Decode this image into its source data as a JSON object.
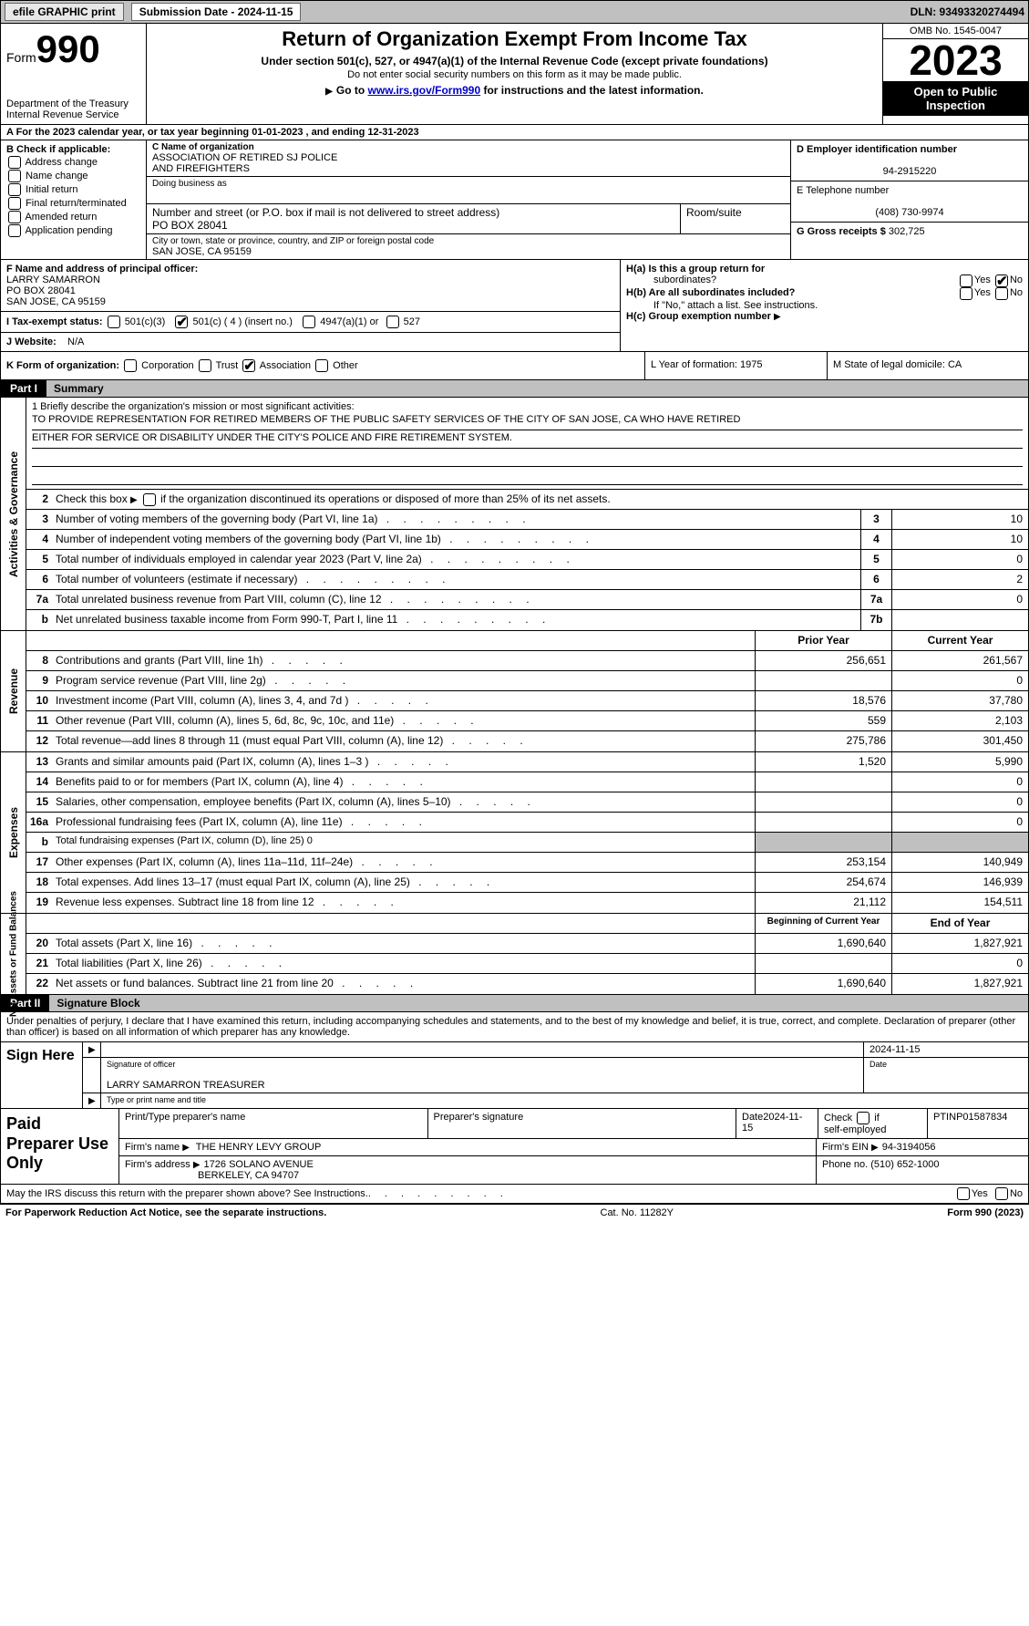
{
  "topbar": {
    "efile": "efile GRAPHIC print",
    "submission_label": "Submission Date - 2024-11-15",
    "dln": "DLN: 93493320274494"
  },
  "header": {
    "form_word": "Form",
    "form_num": "990",
    "dept1": "Department of the Treasury",
    "dept2": "Internal Revenue Service",
    "title": "Return of Organization Exempt From Income Tax",
    "sub1": "Under section 501(c), 527, or 4947(a)(1) of the Internal Revenue Code (except private foundations)",
    "sub2": "Do not enter social security numbers on this form as it may be made public.",
    "sub3_pre": "Go to ",
    "sub3_link": "www.irs.gov/Form990",
    "sub3_post": " for instructions and the latest information.",
    "omb": "OMB No. 1545-0047",
    "year": "2023",
    "open": "Open to Public Inspection"
  },
  "row_a": "A For the 2023 calendar year, or tax year beginning 01-01-2023   , and ending 12-31-2023",
  "section_b": {
    "label": "B Check if applicable:",
    "items": [
      "Address change",
      "Name change",
      "Initial return",
      "Final return/terminated",
      "Amended return",
      "Application pending"
    ]
  },
  "section_c": {
    "name_lbl": "C Name of organization",
    "name1": "ASSOCIATION OF RETIRED SJ POLICE",
    "name2": "AND FIREFIGHTERS",
    "dba_lbl": "Doing business as",
    "street_lbl": "Number and street (or P.O. box if mail is not delivered to street address)",
    "street": "PO BOX 28041",
    "room_lbl": "Room/suite",
    "city_lbl": "City or town, state or province, country, and ZIP or foreign postal code",
    "city": "SAN JOSE, CA  95159"
  },
  "section_d": {
    "ein_lbl": "D Employer identification number",
    "ein": "94-2915220",
    "phone_lbl": "E Telephone number",
    "phone": "(408) 730-9974",
    "gross_lbl": "G Gross receipts $",
    "gross": "302,725"
  },
  "section_f": {
    "lbl": "F  Name and address of principal officer:",
    "l1": "LARRY SAMARRON",
    "l2": "PO BOX 28041",
    "l3": "SAN JOSE, CA  95159"
  },
  "section_i": {
    "lbl": "I   Tax-exempt status:",
    "o1": "501(c)(3)",
    "o2": "501(c) ( 4 ) (insert no.)",
    "o3": "4947(a)(1) or",
    "o4": "527"
  },
  "section_j": {
    "lbl": "J   Website:",
    "val": "N/A"
  },
  "section_h": {
    "ha": "H(a)  Is this a group return for",
    "ha2": "subordinates?",
    "hb": "H(b)  Are all subordinates included?",
    "hb2": "If \"No,\" attach a list. See instructions.",
    "hc": "H(c)  Group exemption number",
    "yes": "Yes",
    "no": "No"
  },
  "section_k": {
    "lbl": "K Form of organization:",
    "opts": [
      "Corporation",
      "Trust",
      "Association",
      "Other"
    ]
  },
  "section_l": {
    "text": "L Year of formation: 1975"
  },
  "section_m": {
    "text": "M State of legal domicile: CA"
  },
  "part1": {
    "num": "Part I",
    "title": "Summary"
  },
  "mission": {
    "lbl": "1   Briefly describe the organization's mission or most significant activities:",
    "l1": "TO PROVIDE REPRESENTATION FOR RETIRED MEMBERS OF THE PUBLIC SAFETY SERVICES OF THE CITY OF SAN JOSE, CA WHO HAVE RETIRED",
    "l2": "EITHER FOR SERVICE OR DISABILITY UNDER THE CITY'S POLICE AND FIRE RETIREMENT SYSTEM."
  },
  "line2": "Check this box        if the organization discontinued its operations or disposed of more than 25% of its net assets.",
  "side_labels": {
    "ag": "Activities & Governance",
    "rev": "Revenue",
    "exp": "Expenses",
    "net": "Net Assets or\nFund Balances"
  },
  "col_hdrs": {
    "prior": "Prior Year",
    "current": "Current Year",
    "boy": "Beginning of Current Year",
    "eoy": "End of Year"
  },
  "lines_ag": [
    {
      "n": "3",
      "t": "Number of voting members of the governing body (Part VI, line 1a)",
      "box": "3",
      "v": "10"
    },
    {
      "n": "4",
      "t": "Number of independent voting members of the governing body (Part VI, line 1b)",
      "box": "4",
      "v": "10"
    },
    {
      "n": "5",
      "t": "Total number of individuals employed in calendar year 2023 (Part V, line 2a)",
      "box": "5",
      "v": "0"
    },
    {
      "n": "6",
      "t": "Total number of volunteers (estimate if necessary)",
      "box": "6",
      "v": "2"
    },
    {
      "n": "7a",
      "t": "Total unrelated business revenue from Part VIII, column (C), line 12",
      "box": "7a",
      "v": "0"
    },
    {
      "n": "b",
      "t": "Net unrelated business taxable income from Form 990-T, Part I, line 11",
      "box": "7b",
      "v": ""
    }
  ],
  "lines_rev": [
    {
      "n": "8",
      "t": "Contributions and grants (Part VIII, line 1h)",
      "p": "256,651",
      "c": "261,567"
    },
    {
      "n": "9",
      "t": "Program service revenue (Part VIII, line 2g)",
      "p": "",
      "c": "0"
    },
    {
      "n": "10",
      "t": "Investment income (Part VIII, column (A), lines 3, 4, and 7d )",
      "p": "18,576",
      "c": "37,780"
    },
    {
      "n": "11",
      "t": "Other revenue (Part VIII, column (A), lines 5, 6d, 8c, 9c, 10c, and 11e)",
      "p": "559",
      "c": "2,103"
    },
    {
      "n": "12",
      "t": "Total revenue—add lines 8 through 11 (must equal Part VIII, column (A), line 12)",
      "p": "275,786",
      "c": "301,450"
    }
  ],
  "lines_exp": [
    {
      "n": "13",
      "t": "Grants and similar amounts paid (Part IX, column (A), lines 1–3 )",
      "p": "1,520",
      "c": "5,990"
    },
    {
      "n": "14",
      "t": "Benefits paid to or for members (Part IX, column (A), line 4)",
      "p": "",
      "c": "0"
    },
    {
      "n": "15",
      "t": "Salaries, other compensation, employee benefits (Part IX, column (A), lines 5–10)",
      "p": "",
      "c": "0"
    },
    {
      "n": "16a",
      "t": "Professional fundraising fees (Part IX, column (A), line 11e)",
      "p": "",
      "c": "0"
    },
    {
      "n": "b",
      "t": "Total fundraising expenses (Part IX, column (D), line 25) 0",
      "grey": true
    },
    {
      "n": "17",
      "t": "Other expenses (Part IX, column (A), lines 11a–11d, 11f–24e)",
      "p": "253,154",
      "c": "140,949"
    },
    {
      "n": "18",
      "t": "Total expenses. Add lines 13–17 (must equal Part IX, column (A), line 25)",
      "p": "254,674",
      "c": "146,939"
    },
    {
      "n": "19",
      "t": "Revenue less expenses. Subtract line 18 from line 12",
      "p": "21,112",
      "c": "154,511"
    }
  ],
  "lines_net": [
    {
      "n": "20",
      "t": "Total assets (Part X, line 16)",
      "p": "1,690,640",
      "c": "1,827,921"
    },
    {
      "n": "21",
      "t": "Total liabilities (Part X, line 26)",
      "p": "",
      "c": "0"
    },
    {
      "n": "22",
      "t": "Net assets or fund balances. Subtract line 21 from line 20",
      "p": "1,690,640",
      "c": "1,827,921"
    }
  ],
  "part2": {
    "num": "Part II",
    "title": "Signature Block"
  },
  "perjury": "Under penalties of perjury, I declare that I have examined this return, including accompanying schedules and statements, and to the best of my knowledge and belief, it is true, correct, and complete. Declaration of preparer (other than officer) is based on all information of which preparer has any knowledge.",
  "sign": {
    "here": "Sign Here",
    "sig_lbl": "Signature of officer",
    "name": "LARRY SAMARRON  TREASURER",
    "name_lbl": "Type or print name and title",
    "date": "2024-11-15",
    "date_lbl": "Date"
  },
  "paid": {
    "label": "Paid Preparer Use Only",
    "r1": {
      "c1_lbl": "Print/Type preparer's name",
      "c2_lbl": "Preparer's signature",
      "c3_lbl": "Date",
      "c3": "2024-11-15",
      "c4": "Check         if self-employed",
      "c5_lbl": "PTIN",
      "c5": "P01587834"
    },
    "r2": {
      "c1_lbl": "Firm's name",
      "c1": "THE HENRY LEVY GROUP",
      "c2_lbl": "Firm's EIN",
      "c2": "94-3194056"
    },
    "r3": {
      "c1_lbl": "Firm's address",
      "c1": "1726 SOLANO AVENUE",
      "c1b": "BERKELEY, CA  94707",
      "c2_lbl": "Phone no.",
      "c2": "(510) 652-1000"
    }
  },
  "discuss": {
    "text": "May the IRS discuss this return with the preparer shown above? See Instructions.",
    "yes": "Yes",
    "no": "No"
  },
  "footer": {
    "left": "For Paperwork Reduction Act Notice, see the separate instructions.",
    "mid": "Cat. No. 11282Y",
    "right": "Form 990 (2023)"
  }
}
